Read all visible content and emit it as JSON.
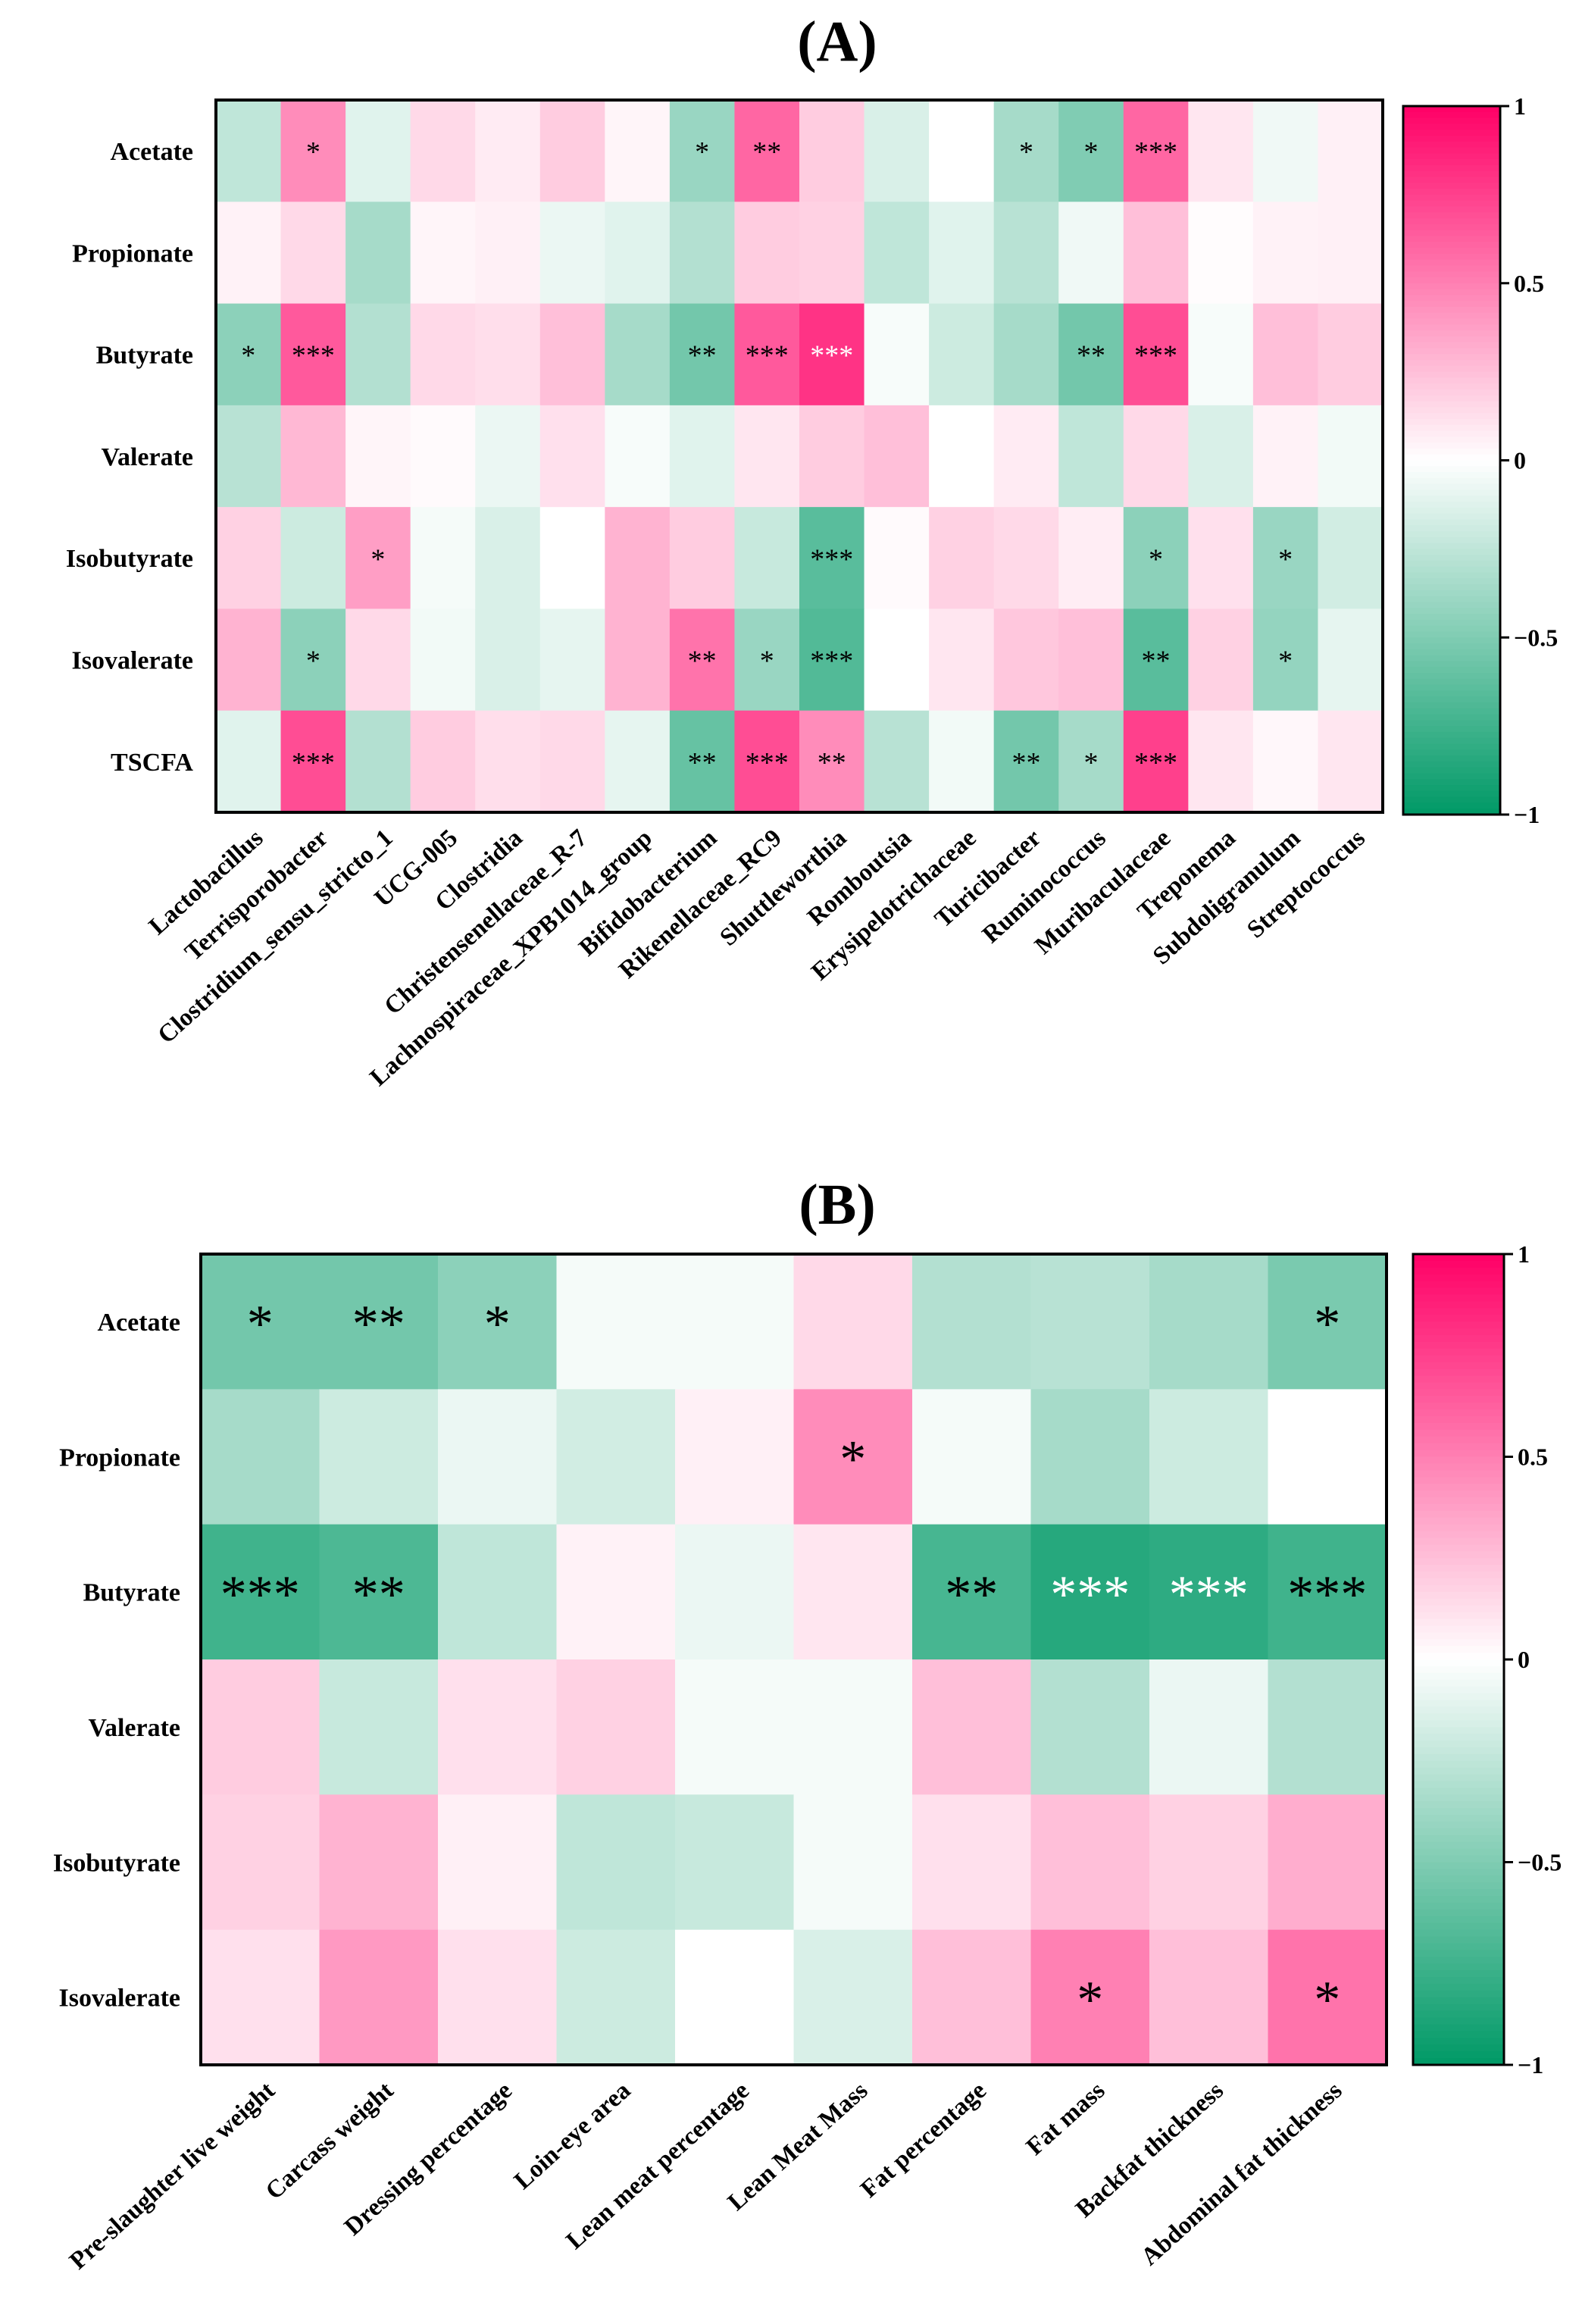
{
  "colors": {
    "low": "#009966",
    "mid": "#ffffff",
    "high": "#ff0066",
    "border": "#000000",
    "dark_label": "#000000",
    "light_label": "#ffffff"
  },
  "chart_data": [
    {
      "panel_label": "(A)",
      "type": "heatmap",
      "rows": [
        "Acetate",
        "Propionate",
        "Butyrate",
        "Valerate",
        "Isobutyrate",
        "Isovalerate",
        "TSCFA"
      ],
      "columns": [
        "Lactobacillus",
        "Terrisporobacter",
        "Clostridium_sensu_stricto_1",
        "UCG-005",
        "Clostridia",
        "Christensenellaceae_R-7",
        "Lachnospiraceae_XPB1014_group",
        "Bifidobacterium",
        "Rikenellaceae_RC9",
        "Shuttleworthia",
        "Romboutsia",
        "Erysipelotrichaceae",
        "Turicibacter",
        "Ruminococcus",
        "Muribaculaceae",
        "Treponema",
        "Subdoligranulum",
        "Streptococcus"
      ],
      "values": [
        [
          -0.25,
          0.45,
          -0.12,
          0.15,
          0.08,
          0.2,
          0.04,
          -0.4,
          0.6,
          0.2,
          -0.15,
          0.0,
          -0.35,
          -0.5,
          0.6,
          0.1,
          -0.06,
          0.06
        ],
        [
          0.05,
          0.15,
          -0.35,
          0.04,
          0.06,
          -0.08,
          -0.12,
          -0.3,
          0.2,
          0.18,
          -0.25,
          -0.12,
          -0.28,
          -0.06,
          0.25,
          0.01,
          0.05,
          0.06
        ],
        [
          -0.45,
          0.65,
          -0.3,
          0.15,
          0.13,
          0.25,
          -0.35,
          -0.55,
          0.65,
          0.8,
          -0.03,
          -0.2,
          -0.35,
          -0.55,
          0.7,
          -0.03,
          0.25,
          0.2
        ],
        [
          -0.28,
          0.28,
          0.04,
          0.02,
          -0.08,
          0.12,
          -0.03,
          -0.12,
          0.1,
          0.2,
          0.25,
          0.0,
          0.08,
          -0.25,
          0.15,
          -0.15,
          0.05,
          -0.05
        ],
        [
          0.18,
          -0.2,
          0.38,
          -0.04,
          -0.15,
          0.0,
          0.3,
          0.2,
          -0.22,
          -0.65,
          0.02,
          0.18,
          0.15,
          0.07,
          -0.45,
          0.12,
          -0.4,
          -0.18
        ],
        [
          0.3,
          -0.45,
          0.15,
          -0.05,
          -0.15,
          -0.1,
          0.3,
          0.55,
          -0.4,
          -0.68,
          0.0,
          0.1,
          0.22,
          0.25,
          -0.65,
          0.18,
          -0.42,
          -0.1
        ],
        [
          -0.12,
          0.7,
          -0.3,
          0.2,
          0.13,
          0.15,
          -0.1,
          -0.6,
          0.7,
          0.45,
          -0.28,
          -0.05,
          -0.55,
          -0.35,
          0.75,
          0.1,
          0.03,
          0.1
        ]
      ],
      "significance": [
        [
          "",
          "*",
          "",
          "",
          "",
          "",
          "",
          "*",
          "**",
          "",
          "",
          "",
          "*",
          "*",
          "***",
          "",
          "",
          ""
        ],
        [
          "",
          "",
          "",
          "",
          "",
          "",
          "",
          "",
          "",
          "",
          "",
          "",
          "",
          "",
          "",
          "",
          "",
          ""
        ],
        [
          "*",
          "***",
          "",
          "",
          "",
          "",
          "",
          "**",
          "***",
          "***",
          "",
          "",
          "",
          "**",
          "***",
          "",
          "",
          ""
        ],
        [
          "",
          "",
          "",
          "",
          "",
          "",
          "",
          "",
          "",
          "",
          "",
          "",
          "",
          "",
          "",
          "",
          "",
          ""
        ],
        [
          "",
          "",
          "*",
          "",
          "",
          "",
          "",
          "",
          "",
          "***",
          "",
          "",
          "",
          "",
          "*",
          "",
          "*",
          ""
        ],
        [
          "",
          "*",
          "",
          "",
          "",
          "",
          "",
          "**",
          "*",
          "***",
          "",
          "",
          "",
          "",
          "**",
          "",
          "*",
          ""
        ],
        [
          "",
          "***",
          "",
          "",
          "",
          "",
          "",
          "**",
          "***",
          "**",
          "",
          "",
          "**",
          "*",
          "***",
          "",
          "",
          ""
        ]
      ],
      "colorbar": {
        "range": [
          -1,
          1
        ],
        "ticks": [
          1,
          0.5,
          0,
          -0.5,
          -1
        ],
        "tick_labels": [
          "1",
          "0.5",
          "0",
          "−0.5",
          "−1"
        ]
      }
    },
    {
      "panel_label": "(B)",
      "type": "heatmap",
      "rows": [
        "Acetate",
        "Propionate",
        "Butyrate",
        "Valerate",
        "Isobutyrate",
        "Isovalerate"
      ],
      "columns": [
        "Pre-slaughter live weight",
        "Carcass weight",
        "Dressing percentage",
        "Loin-eye area",
        "Lean meat percentage",
        "Lean Meat Mass",
        "Fat percentage",
        "Fat mass",
        "Backfat thickness",
        "Abdominal fat thickness"
      ],
      "values": [
        [
          -0.55,
          -0.55,
          -0.45,
          -0.04,
          -0.04,
          0.15,
          -0.3,
          -0.28,
          -0.35,
          -0.52
        ],
        [
          -0.35,
          -0.2,
          -0.08,
          -0.18,
          0.06,
          0.45,
          -0.04,
          -0.35,
          -0.2,
          0.0
        ],
        [
          -0.75,
          -0.7,
          -0.25,
          0.05,
          -0.08,
          0.1,
          -0.72,
          -0.85,
          -0.82,
          -0.75
        ],
        [
          0.2,
          -0.22,
          0.12,
          0.18,
          -0.04,
          -0.04,
          0.25,
          -0.3,
          -0.08,
          -0.3
        ],
        [
          0.18,
          0.3,
          0.06,
          -0.25,
          -0.22,
          -0.04,
          0.12,
          0.25,
          0.18,
          0.32
        ],
        [
          0.12,
          0.4,
          0.12,
          -0.2,
          0.0,
          -0.15,
          0.25,
          0.5,
          0.25,
          0.55
        ]
      ],
      "significance": [
        [
          "*",
          "**",
          "*",
          "",
          "",
          "",
          "",
          "",
          "",
          "*"
        ],
        [
          "",
          "",
          "",
          "",
          "",
          "*",
          "",
          "",
          "",
          ""
        ],
        [
          "***",
          "**",
          "",
          "",
          "",
          "",
          "**",
          "***",
          "***",
          "***"
        ],
        [
          "",
          "",
          "",
          "",
          "",
          "",
          "",
          "",
          "",
          ""
        ],
        [
          "",
          "",
          "",
          "",
          "",
          "",
          "",
          "",
          "",
          ""
        ],
        [
          "",
          "",
          "",
          "",
          "",
          "",
          "",
          "*",
          "",
          "*"
        ]
      ],
      "colorbar": {
        "range": [
          -1,
          1
        ],
        "ticks": [
          1,
          0.5,
          0,
          -0.5,
          -1
        ],
        "tick_labels": [
          "1",
          "0.5",
          "0",
          "−0.5",
          "−1"
        ]
      }
    }
  ]
}
